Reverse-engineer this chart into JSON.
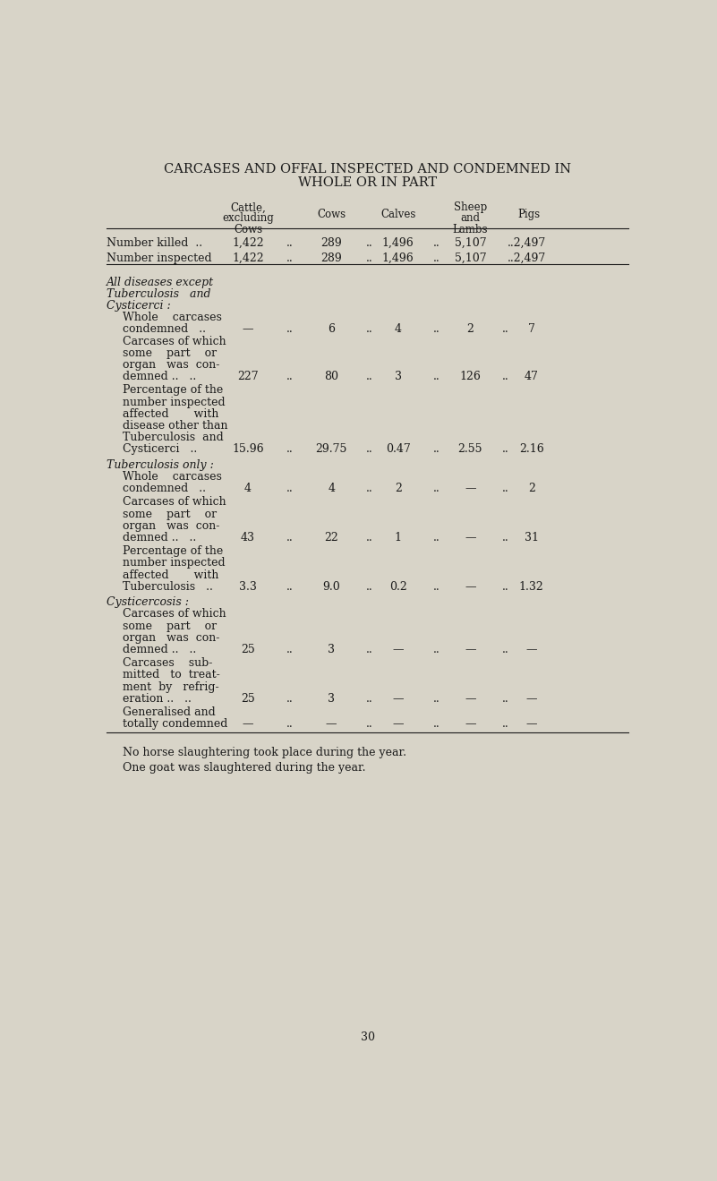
{
  "title_line1": "CARCASES AND OFFAL INSPECTED AND CONDEMNED IN",
  "title_line2": "WHOLE OR IN PART",
  "bg_color": "#d8d4c8",
  "text_color": "#1a1a1a",
  "footnote1": "No horse slaughtering took place during the year.",
  "footnote2": "One goat was slaughtered during the year.",
  "page_num": "30"
}
